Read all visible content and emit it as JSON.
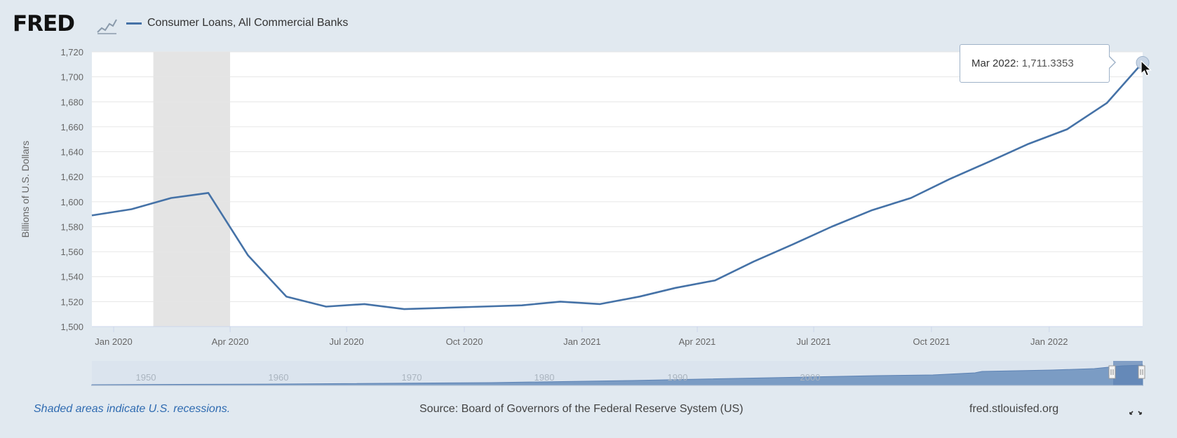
{
  "header": {
    "logo_text": "FRED",
    "logo_icon": "chart-line-icon",
    "legend_label": "Consumer Loans, All Commercial Banks"
  },
  "tooltip": {
    "date": "Mar 2022:",
    "value": "1,711.3353"
  },
  "navigator": {
    "labels": [
      "1950",
      "1960",
      "1970",
      "1980",
      "1990",
      "2000"
    ]
  },
  "footer": {
    "note": "Shaded areas indicate U.S. recessions.",
    "source": "Source: Board of Governors of the Federal Reserve System (US)",
    "url": "fred.stlouisfed.org",
    "expand_icon": "expand-icon"
  },
  "colors": {
    "series": "#4572a7",
    "recession": "#e4e4e4",
    "background": "#e1e9f0",
    "plot": "#ffffff"
  },
  "chart_data": {
    "type": "line",
    "title": "",
    "xlabel": "",
    "ylabel": "Billions of U.S. Dollars",
    "ylim": [
      1500,
      1720
    ],
    "yticks": [
      1500,
      1520,
      1540,
      1560,
      1580,
      1600,
      1620,
      1640,
      1660,
      1680,
      1700,
      1720
    ],
    "ytick_labels": [
      "1,500",
      "1,520",
      "1,540",
      "1,560",
      "1,580",
      "1,600",
      "1,620",
      "1,640",
      "1,660",
      "1,680",
      "1,700",
      "1,720"
    ],
    "xticks": [
      "2020-01",
      "2020-04",
      "2020-07",
      "2020-10",
      "2021-01",
      "2021-04",
      "2021-07",
      "2021-10",
      "2022-01"
    ],
    "xtick_labels": [
      "Jan 2020",
      "Apr 2020",
      "Jul 2020",
      "Oct 2020",
      "Jan 2021",
      "Apr 2021",
      "Jul 2021",
      "Oct 2021",
      "Jan 2022"
    ],
    "grid": true,
    "legend": "top-left",
    "recession": {
      "start": "2020-02",
      "end": "2020-04"
    },
    "series": [
      {
        "name": "Consumer Loans, All Commercial Banks",
        "x": [
          "2019-12-15",
          "2020-01-15",
          "2020-02-15",
          "2020-03-15",
          "2020-04-15",
          "2020-05-15",
          "2020-06-15",
          "2020-07-15",
          "2020-08-15",
          "2020-09-15",
          "2020-10-15",
          "2020-11-15",
          "2020-12-15",
          "2021-01-15",
          "2021-02-15",
          "2021-03-15",
          "2021-04-15",
          "2021-05-15",
          "2021-06-15",
          "2021-07-15",
          "2021-08-15",
          "2021-09-15",
          "2021-10-15",
          "2021-11-15",
          "2021-12-15",
          "2022-01-15",
          "2022-02-15",
          "2022-03-15"
        ],
        "values": [
          1589,
          1594,
          1603,
          1607,
          1557,
          1524,
          1516,
          1518,
          1514,
          1515,
          1516,
          1517,
          1520,
          1518,
          1524,
          1531,
          1537,
          1552,
          1566,
          1580,
          1593,
          1603,
          1618,
          1632,
          1646,
          1658,
          1679,
          1711.3353
        ]
      }
    ]
  }
}
